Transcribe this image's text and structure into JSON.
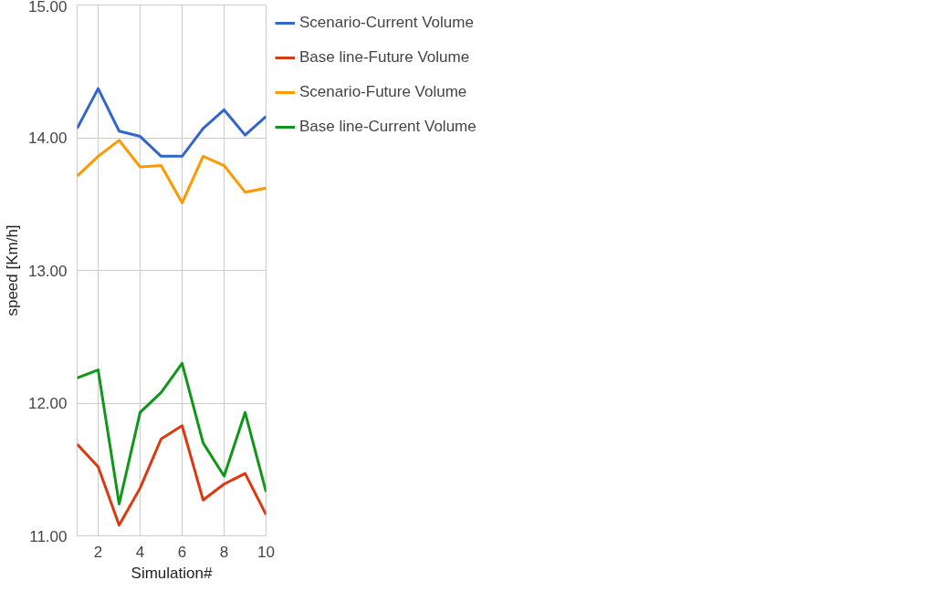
{
  "chart_data": {
    "type": "line",
    "xlabel": "Simulation#",
    "ylabel": "speed [Km/h]",
    "x": [
      1,
      2,
      3,
      4,
      5,
      6,
      7,
      8,
      9,
      10
    ],
    "xlim": [
      1,
      10
    ],
    "xticks": [
      2,
      4,
      6,
      8,
      10
    ],
    "ylim": [
      11,
      15
    ],
    "yticks": [
      {
        "value": 11,
        "label": "11.00"
      },
      {
        "value": 12,
        "label": "12.00"
      },
      {
        "value": 13,
        "label": "13.00"
      },
      {
        "value": 14,
        "label": "14.00"
      },
      {
        "value": 15,
        "label": "15.00"
      }
    ],
    "grid": true,
    "legend": "right",
    "marker": "none",
    "line_style": "solid",
    "series": [
      {
        "name": "Scenario-Current Volume",
        "color": "#3366cc",
        "values": [
          14.07,
          14.37,
          14.05,
          14.01,
          13.86,
          13.86,
          14.07,
          14.21,
          14.02,
          14.16
        ]
      },
      {
        "name": "Base line-Future Volume",
        "color": "#dc3912",
        "values": [
          11.69,
          11.52,
          11.08,
          11.36,
          11.73,
          11.83,
          11.27,
          11.39,
          11.47,
          11.16
        ]
      },
      {
        "name": "Scenario-Future Volume",
        "color": "#ff9900",
        "values": [
          13.71,
          13.86,
          13.98,
          13.78,
          13.79,
          13.51,
          13.86,
          13.79,
          13.59,
          13.62
        ]
      },
      {
        "name": "Base line-Current Volume",
        "color": "#109618",
        "values": [
          12.19,
          12.25,
          11.24,
          11.93,
          12.08,
          12.3,
          11.7,
          11.45,
          11.93,
          11.33
        ]
      }
    ]
  }
}
